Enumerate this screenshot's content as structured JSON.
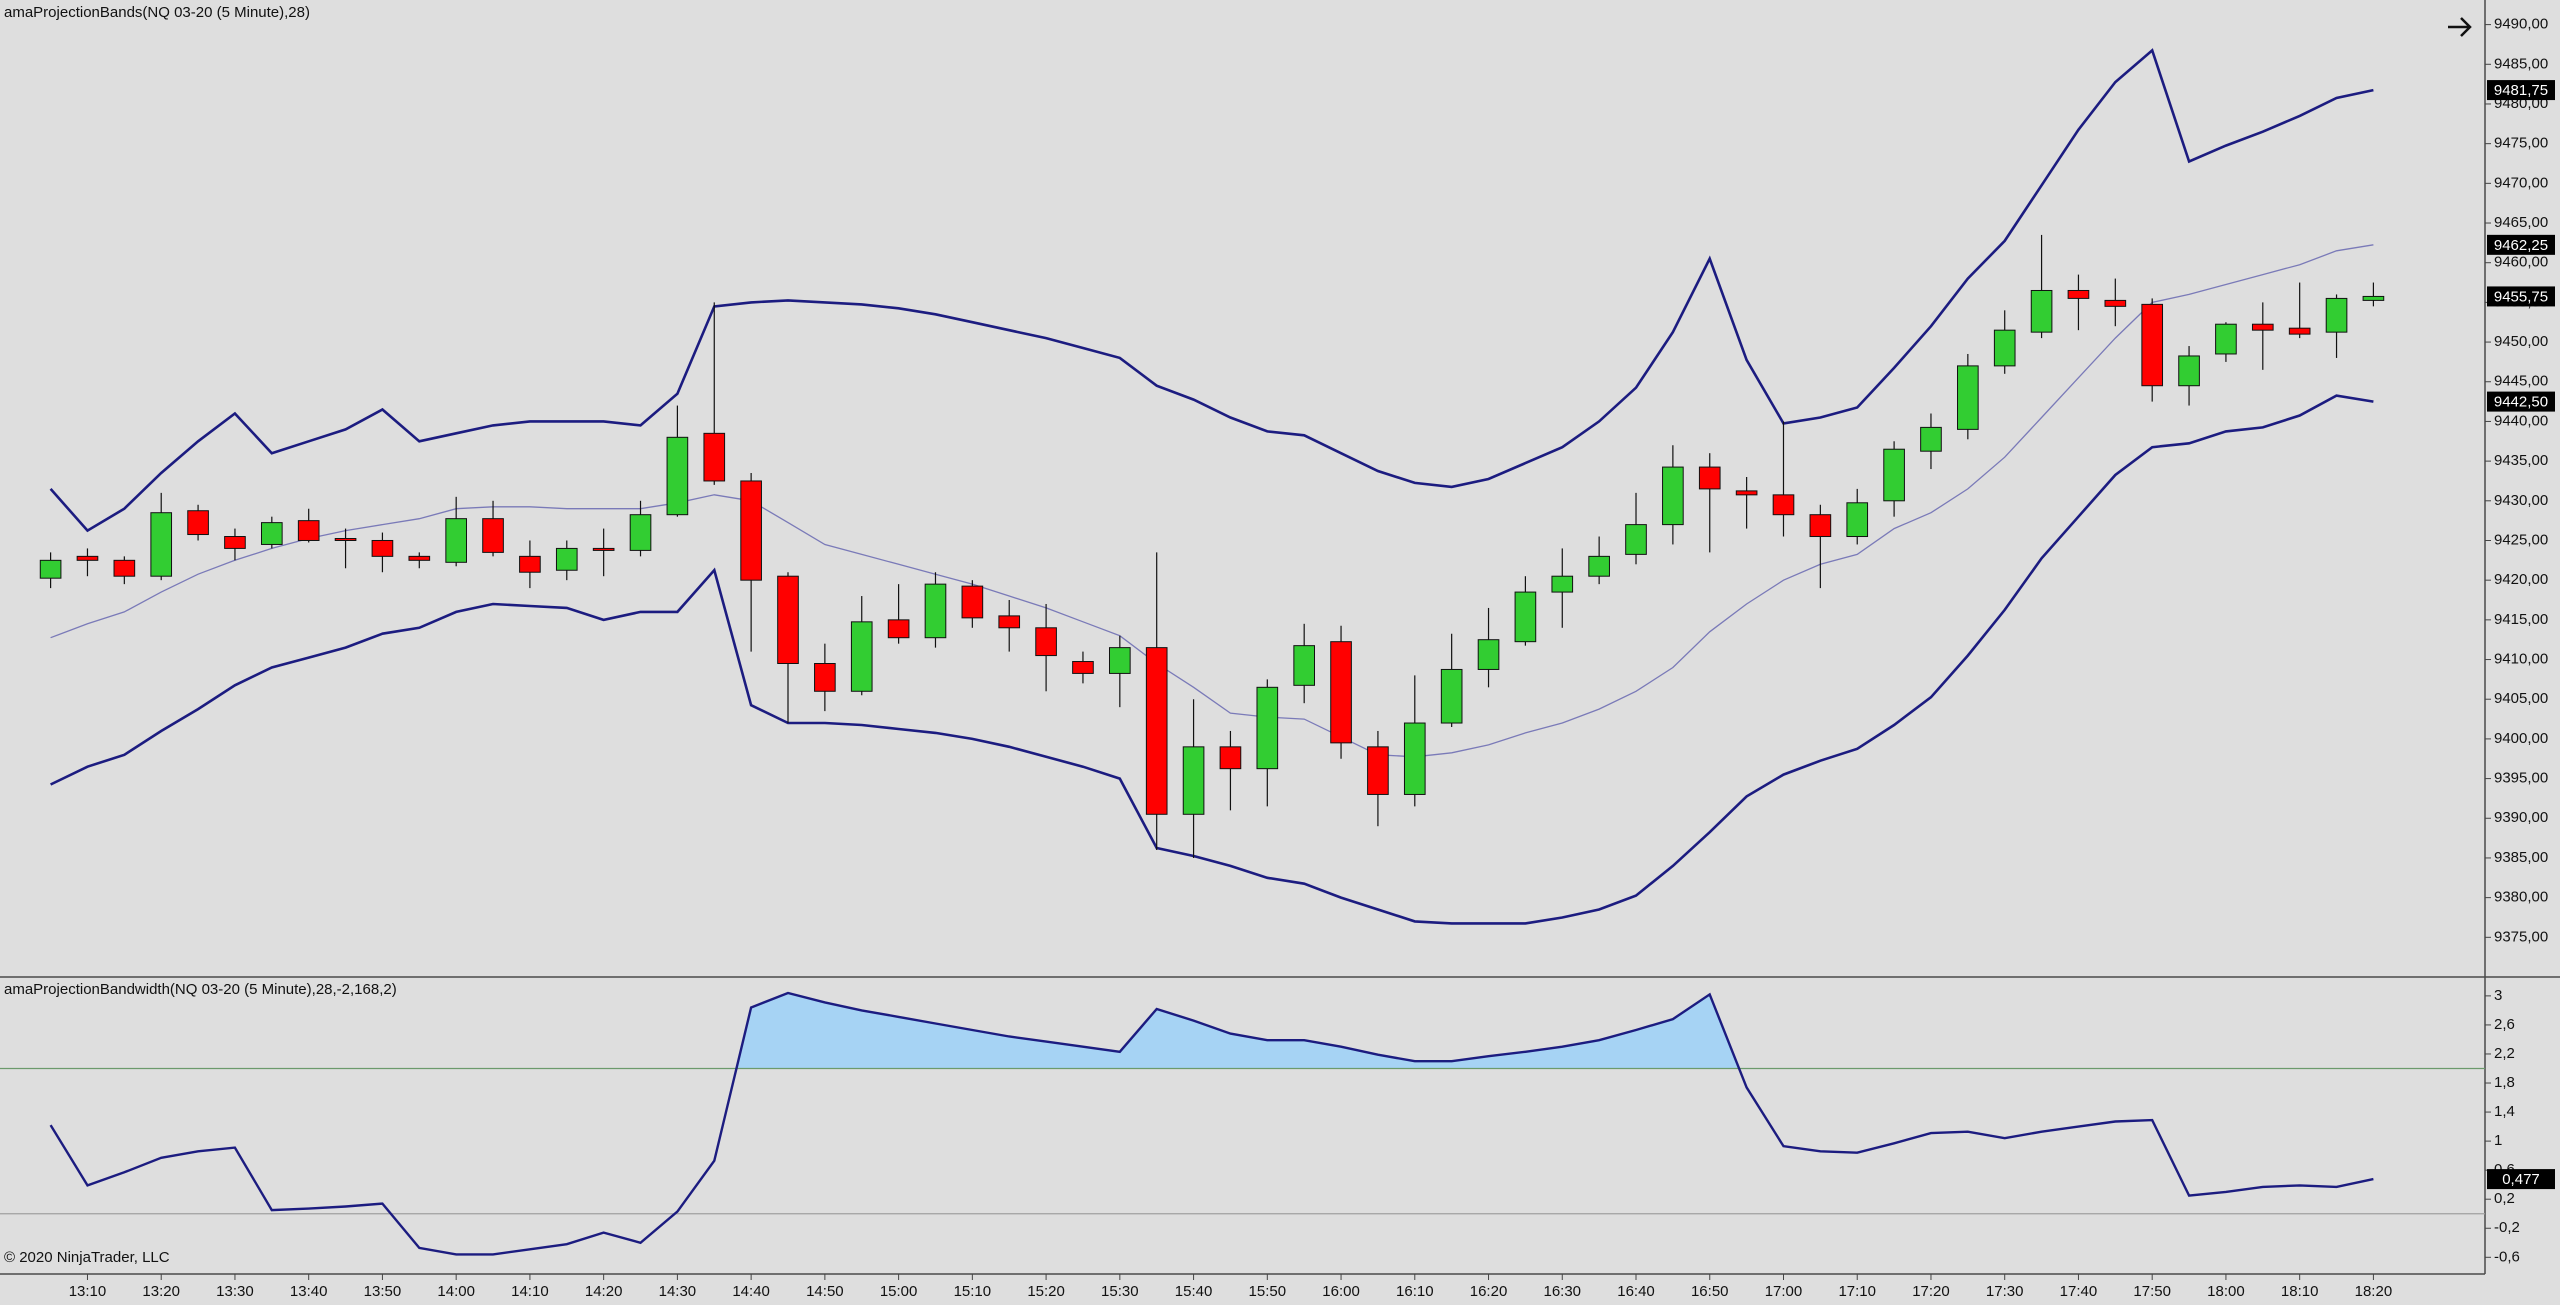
{
  "chart_data": [
    {
      "type": "candlestick",
      "title": "amaProjectionBands(NQ 03-20 (5 Minute),28)",
      "open": [
        9420.25,
        9423,
        9422.5,
        9420.5,
        9428.75,
        9425.5,
        9424.5,
        9427.5,
        9425.25,
        9425,
        9423,
        9422.25,
        9427.75,
        9423,
        9421.25,
        9424,
        9423.75,
        9428.25,
        9438.5,
        9432.5,
        9420.5,
        9409.5,
        9406,
        9415,
        9412.75,
        9419.25,
        9415.5,
        9414,
        9409.75,
        9408.25,
        9411.5,
        9390.5,
        9399,
        9396.25,
        9406.75,
        9412.25,
        9399,
        9393,
        9402,
        9408.75,
        9412.25,
        9418.5,
        9420.5,
        9423.25,
        9427,
        9434.25,
        9431.25,
        9430.75,
        9428.25,
        9425.5,
        9430,
        9436.25,
        9439,
        9447,
        9451.25,
        9456.5,
        9455.25,
        9454.75,
        9444.5,
        9448.5,
        9452.25,
        9451.75,
        9451.25,
        9455.25
      ],
      "high": [
        9423.5,
        9424,
        9423,
        9431,
        9429.5,
        9426.5,
        9428,
        9429,
        9426.5,
        9426,
        9423.5,
        9430.5,
        9430,
        9425,
        9425,
        9426.5,
        9430,
        9442,
        9455,
        9433.5,
        9421,
        9412,
        9418,
        9419.5,
        9421,
        9420,
        9417.5,
        9417,
        9411,
        9413,
        9423.5,
        9405,
        9401,
        9407.5,
        9414.5,
        9414.25,
        9401,
        9408,
        9413.25,
        9416.5,
        9420.5,
        9424,
        9425.5,
        9431,
        9437,
        9436,
        9433,
        9440,
        9429.5,
        9431.5,
        9437.5,
        9441,
        9448.5,
        9454,
        9463.5,
        9458.5,
        9458,
        9455.5,
        9449.5,
        9452.5,
        9455,
        9457.5,
        9456,
        9457.5
      ],
      "low": [
        9419,
        9420.5,
        9419.5,
        9420,
        9425,
        9422.5,
        9424,
        9424.75,
        9421.5,
        9421,
        9421.5,
        9421.75,
        9423,
        9419,
        9420,
        9420.5,
        9423,
        9428,
        9432,
        9411,
        9402,
        9403.5,
        9405.5,
        9412,
        9411.5,
        9414,
        9411,
        9406,
        9407,
        9404,
        9386,
        9385,
        9391,
        9391.5,
        9404.5,
        9397.5,
        9389,
        9391.5,
        9401.5,
        9406.5,
        9411.75,
        9414,
        9419.5,
        9422,
        9424.5,
        9423.5,
        9426.5,
        9425.5,
        9419,
        9424.5,
        9428,
        9434,
        9437.75,
        9446,
        9450.5,
        9451.5,
        9452,
        9442.5,
        9442,
        9447.5,
        9446.5,
        9450.5,
        9448,
        9454.5
      ],
      "close": [
        9422.5,
        9422.5,
        9420.5,
        9428.5,
        9425.75,
        9424,
        9427.25,
        9425,
        9425,
        9423,
        9422.5,
        9427.75,
        9423.5,
        9421,
        9424,
        9423.75,
        9428.25,
        9438,
        9432.5,
        9420,
        9409.5,
        9406,
        9414.75,
        9412.75,
        9419.5,
        9415.25,
        9414,
        9410.5,
        9408.25,
        9411.5,
        9390.5,
        9399,
        9396.25,
        9406.5,
        9411.75,
        9399.5,
        9393,
        9402,
        9408.75,
        9412.5,
        9418.5,
        9420.5,
        9423,
        9427,
        9434.25,
        9431.5,
        9430.75,
        9428.25,
        9425.5,
        9429.75,
        9436.5,
        9439.25,
        9447,
        9451.5,
        9456.5,
        9455.5,
        9454.5,
        9444.5,
        9448.25,
        9452.25,
        9451.5,
        9451,
        9455.5,
        9455.75
      ],
      "close_label": "9455,75",
      "up_color": "#32cd32",
      "down_color": "#ff0000",
      "series": [
        {
          "color": "#1c1c80",
          "last_label": "9481,75",
          "values": [
            9431.5,
            9426.25,
            9429,
            9433.5,
            9437.5,
            9441,
            9436,
            9437.5,
            9439,
            9441.5,
            9437.5,
            9438.5,
            9439.5,
            9440,
            9440,
            9440,
            9439.5,
            9443.5,
            9454.5,
            9455,
            9455.25,
            9455,
            9454.75,
            9454.25,
            9453.5,
            9452.5,
            9451.5,
            9450.5,
            9449.25,
            9448,
            9444.5,
            9442.75,
            9440.5,
            9438.75,
            9438.25,
            9436,
            9433.75,
            9432.25,
            9431.75,
            9432.75,
            9434.75,
            9436.75,
            9440,
            9444.25,
            9451.25,
            9460.5,
            9447.75,
            9439.75,
            9440.5,
            9441.75,
            9446.75,
            9452,
            9458,
            9462.75,
            9469.75,
            9476.75,
            9482.75,
            9486.75,
            9472.75,
            9474.75,
            9476.5,
            9478.5,
            9480.75,
            9481.75
          ]
        },
        {
          "color": "#7a7ab8",
          "last_label": "9462,25",
          "values": [
            9412.75,
            9414.5,
            9416,
            9418.5,
            9420.75,
            9422.5,
            9424,
            9425.25,
            9426.25,
            9427,
            9427.75,
            9429,
            9429.25,
            9429.25,
            9429,
            9429,
            9429,
            9429.75,
            9430.75,
            9430,
            9427.25,
            9424.5,
            9423.25,
            9422,
            9420.75,
            9419.5,
            9418,
            9416.5,
            9414.75,
            9413,
            9409.5,
            9406.5,
            9403.25,
            9402.75,
            9402.5,
            9400.25,
            9398,
            9397.75,
            9398.25,
            9399.25,
            9400.75,
            9402,
            9403.75,
            9406,
            9409,
            9413.5,
            9417,
            9420,
            9422,
            9423.25,
            9426.5,
            9428.5,
            9431.5,
            9435.5,
            9440.5,
            9445.5,
            9450.5,
            9455,
            9456,
            9457.25,
            9458.5,
            9459.75,
            9461.5,
            9462.25
          ]
        },
        {
          "color": "#1c1c80",
          "last_label": "9442,50",
          "values": [
            9394.25,
            9396.5,
            9398,
            9401,
            9403.75,
            9406.75,
            9409,
            9410.25,
            9411.5,
            9413.25,
            9414,
            9416,
            9417,
            9416.75,
            9416.5,
            9415,
            9416,
            9416,
            9421.25,
            9404.25,
            9402,
            9402,
            9401.75,
            9401.25,
            9400.75,
            9400,
            9399,
            9397.75,
            9396.5,
            9395,
            9386.25,
            9385.25,
            9384,
            9382.5,
            9381.75,
            9380,
            9378.5,
            9377,
            9376.75,
            9376.75,
            9376.75,
            9377.5,
            9378.5,
            9380.25,
            9384,
            9388.25,
            9392.75,
            9395.5,
            9397.25,
            9398.75,
            9401.75,
            9405.25,
            9410.5,
            9416.25,
            9422.75,
            9428,
            9433.25,
            9436.75,
            9437.25,
            9438.75,
            9439.25,
            9440.75,
            9443.25,
            9442.5
          ]
        }
      ],
      "ylim": [
        9370,
        9493.1
      ],
      "yticks": [
        {
          "value": 9375,
          "label": "9375,00"
        },
        {
          "value": 9380,
          "label": "9380,00"
        },
        {
          "value": 9385,
          "label": "9385,00"
        },
        {
          "value": 9390,
          "label": "9390,00"
        },
        {
          "value": 9395,
          "label": "9395,00"
        },
        {
          "value": 9400,
          "label": "9400,00"
        },
        {
          "value": 9405,
          "label": "9405,00"
        },
        {
          "value": 9410,
          "label": "9410,00"
        },
        {
          "value": 9415,
          "label": "9415,00"
        },
        {
          "value": 9420,
          "label": "9420,00"
        },
        {
          "value": 9425,
          "label": "9425,00"
        },
        {
          "value": 9430,
          "label": "9430,00"
        },
        {
          "value": 9435,
          "label": "9435,00"
        },
        {
          "value": 9440,
          "label": "9440,00"
        },
        {
          "value": 9445,
          "label": "9445,00"
        },
        {
          "value": 9450,
          "label": "9450,00"
        },
        {
          "value": 9455,
          "label": "9455,00"
        },
        {
          "value": 9460,
          "label": "9460,00"
        },
        {
          "value": 9465,
          "label": "9465,00"
        },
        {
          "value": 9470,
          "label": "9470,00"
        },
        {
          "value": 9475,
          "label": "9475,00"
        },
        {
          "value": 9480,
          "label": "9480,00"
        },
        {
          "value": 9485,
          "label": "9485,00"
        },
        {
          "value": 9490,
          "label": "9490,00"
        }
      ]
    },
    {
      "type": "line",
      "title": "amaProjectionBandwidth(NQ 03-20 (5 Minute),28,-2,168,2)",
      "categories": [
        null,
        "13:10",
        null,
        "13:20",
        null,
        "13:30",
        null,
        "13:40",
        null,
        "13:50",
        null,
        "14:00",
        null,
        "14:10",
        null,
        "14:20",
        null,
        "14:30",
        null,
        "14:40",
        null,
        "14:50",
        null,
        "15:00",
        null,
        "15:10",
        null,
        "15:20",
        null,
        "15:30",
        null,
        "15:40",
        null,
        "15:50",
        null,
        "16:00",
        null,
        "16:10",
        null,
        "16:20",
        null,
        "16:30",
        null,
        "16:40",
        null,
        "16:50",
        null,
        "17:00",
        null,
        "17:10",
        null,
        "17:20",
        null,
        "17:30",
        null,
        "17:40",
        null,
        "17:50",
        null,
        "18:00",
        null,
        "18:10",
        null,
        "18:20"
      ],
      "values": [
        1.22,
        0.39,
        0.57,
        0.77,
        0.86,
        0.91,
        0.05,
        0.07,
        0.1,
        0.14,
        -0.47,
        -0.56,
        -0.56,
        -0.49,
        -0.42,
        -0.26,
        -0.4,
        0.03,
        0.73,
        2.84,
        3.04,
        2.91,
        2.8,
        2.71,
        2.62,
        2.53,
        2.44,
        2.37,
        2.3,
        2.23,
        2.82,
        2.66,
        2.48,
        2.39,
        2.39,
        2.3,
        2.19,
        2.1,
        2.1,
        2.17,
        2.23,
        2.3,
        2.39,
        2.53,
        2.68,
        3.02,
        1.74,
        0.93,
        0.86,
        0.84,
        0.97,
        1.11,
        1.13,
        1.04,
        1.13,
        1.2,
        1.27,
        1.29,
        0.25,
        0.3,
        0.37,
        0.39,
        0.37,
        0.477
      ],
      "last_label": "0,477",
      "color": "#1c1c80",
      "fill_color": "#a6d3f4",
      "upper_threshold": 2,
      "upper_threshold_color": "#6c9a6c",
      "lower_threshold": 0,
      "lower_threshold_color": "#a0a0a0",
      "ylim": [
        -0.83,
        3.26
      ],
      "yticks": [
        3,
        {
          "value": 2.6,
          "label": "2,6"
        },
        {
          "value": 2.2,
          "label": "2,2"
        },
        {
          "value": 1.8,
          "label": "1,8"
        },
        {
          "value": 1.4,
          "label": "1,4"
        },
        1,
        {
          "value": 0.6,
          "label": "0,6"
        },
        {
          "value": 0.2,
          "label": "0,2"
        },
        {
          "value": -0.2,
          "label": "-0,2"
        },
        {
          "value": -0.6,
          "label": "-0,6"
        }
      ]
    }
  ],
  "copyright": "© 2020 NinjaTrader, LLC"
}
